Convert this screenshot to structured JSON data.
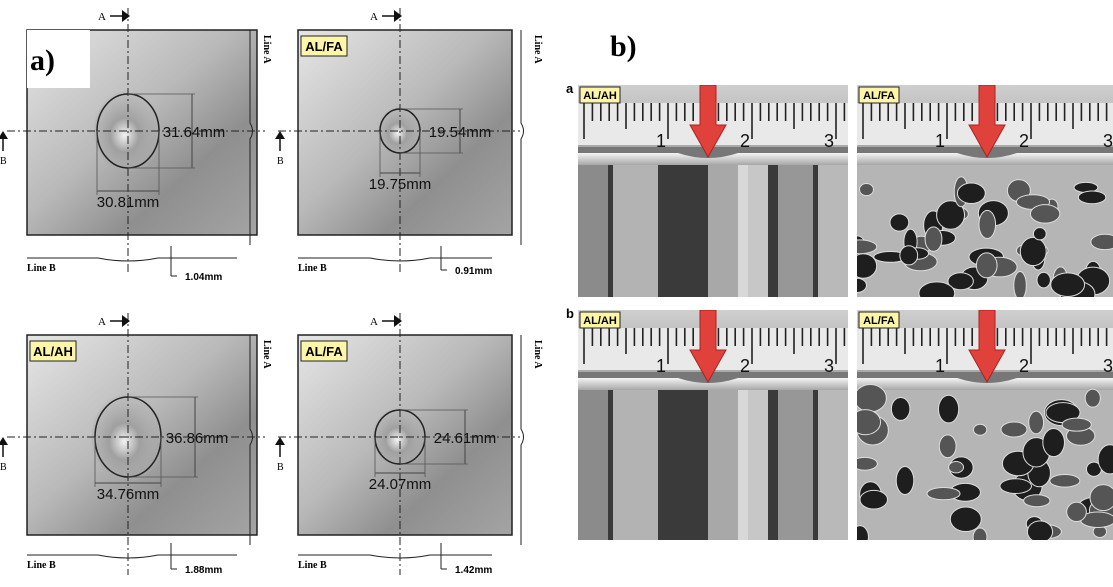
{
  "panel_a": {
    "label": "a)",
    "markers": {
      "section_a": "A",
      "section_b": "B",
      "line_a": "Line A",
      "line_b": "Line B"
    },
    "plates": [
      {
        "vertical_dim": "31.64mm",
        "horizontal_dim": "30.81mm",
        "depth": "1.04mm"
      },
      {
        "tag": "AL/FA",
        "vertical_dim": "19.54mm",
        "horizontal_dim": "19.75mm",
        "depth": "0.91mm"
      },
      {
        "tag": "AL/AH",
        "vertical_dim": "36.86mm",
        "horizontal_dim": "34.76mm",
        "depth": "1.88mm"
      },
      {
        "tag": "AL/FA",
        "vertical_dim": "24.61mm",
        "horizontal_dim": "24.07mm",
        "depth": "1.42mm"
      }
    ]
  },
  "panel_b": {
    "label": "b)",
    "ruler_numbers": [
      "1",
      "2",
      "3"
    ],
    "rows": [
      {
        "label": "a",
        "photos": [
          {
            "tag": "AL/AH"
          },
          {
            "tag": "AL/FA"
          }
        ]
      },
      {
        "label": "b",
        "photos": [
          {
            "tag": "AL/AH"
          },
          {
            "tag": "AL/FA"
          }
        ]
      }
    ]
  }
}
